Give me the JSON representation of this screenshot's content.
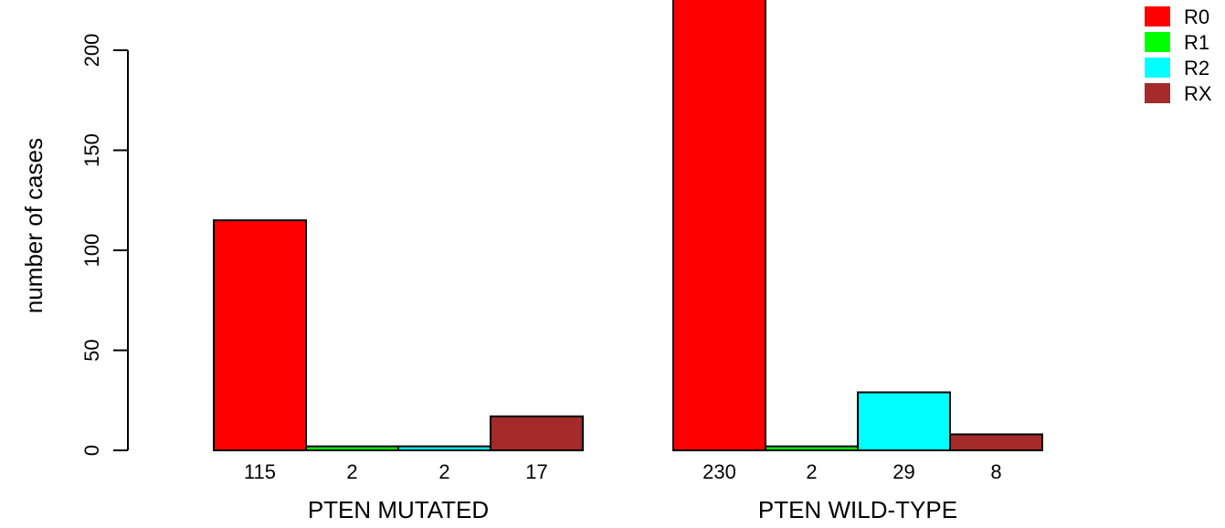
{
  "chart_data": {
    "type": "bar",
    "ylabel": "number of cases",
    "ylim": [
      0,
      230
    ],
    "yticks": [
      0,
      50,
      100,
      150,
      200
    ],
    "groups": [
      "PTEN MUTATED",
      "PTEN WILD-TYPE"
    ],
    "series": [
      {
        "name": "R0",
        "color": "#ff0000",
        "values": [
          115,
          230
        ]
      },
      {
        "name": "R1",
        "color": "#00ff00",
        "values": [
          2,
          2
        ]
      },
      {
        "name": "R2",
        "color": "#00ffff",
        "values": [
          2,
          29
        ]
      },
      {
        "name": "RX",
        "color": "#a52a2a",
        "values": [
          17,
          8
        ]
      }
    ],
    "bar_labels": [
      [
        "115",
        "2",
        "2",
        "17"
      ],
      [
        "230",
        "2",
        "29",
        "8"
      ]
    ],
    "legend_position": "top-right",
    "grid": false
  }
}
